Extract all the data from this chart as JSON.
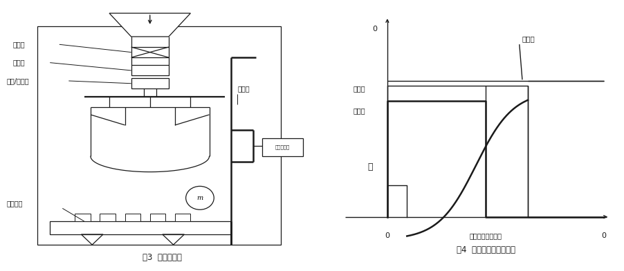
{
  "fig3_caption": "图3  控制示意图",
  "fig4_caption": "图4  称量过程的动态曲线",
  "fig4_xlabel_mid": "质量（去皮夹重）",
  "fig4_label_setvalue": "设定值",
  "fig4_label_small": "小进料",
  "fig4_label_large": "大进料",
  "fig4_label_minus": "－",
  "fig3_labels": {
    "feed_hopper": "进料闸",
    "sampler": "采样口",
    "air_dust": "充气/除尘口",
    "lift_frame": "升降架",
    "scale_controller": "称重控制器",
    "scale_platform": "称量平台"
  },
  "bg_color": "#ffffff",
  "line_color": "#1a1a1a",
  "font_size_caption": 8.5,
  "font_size_label": 7.0
}
